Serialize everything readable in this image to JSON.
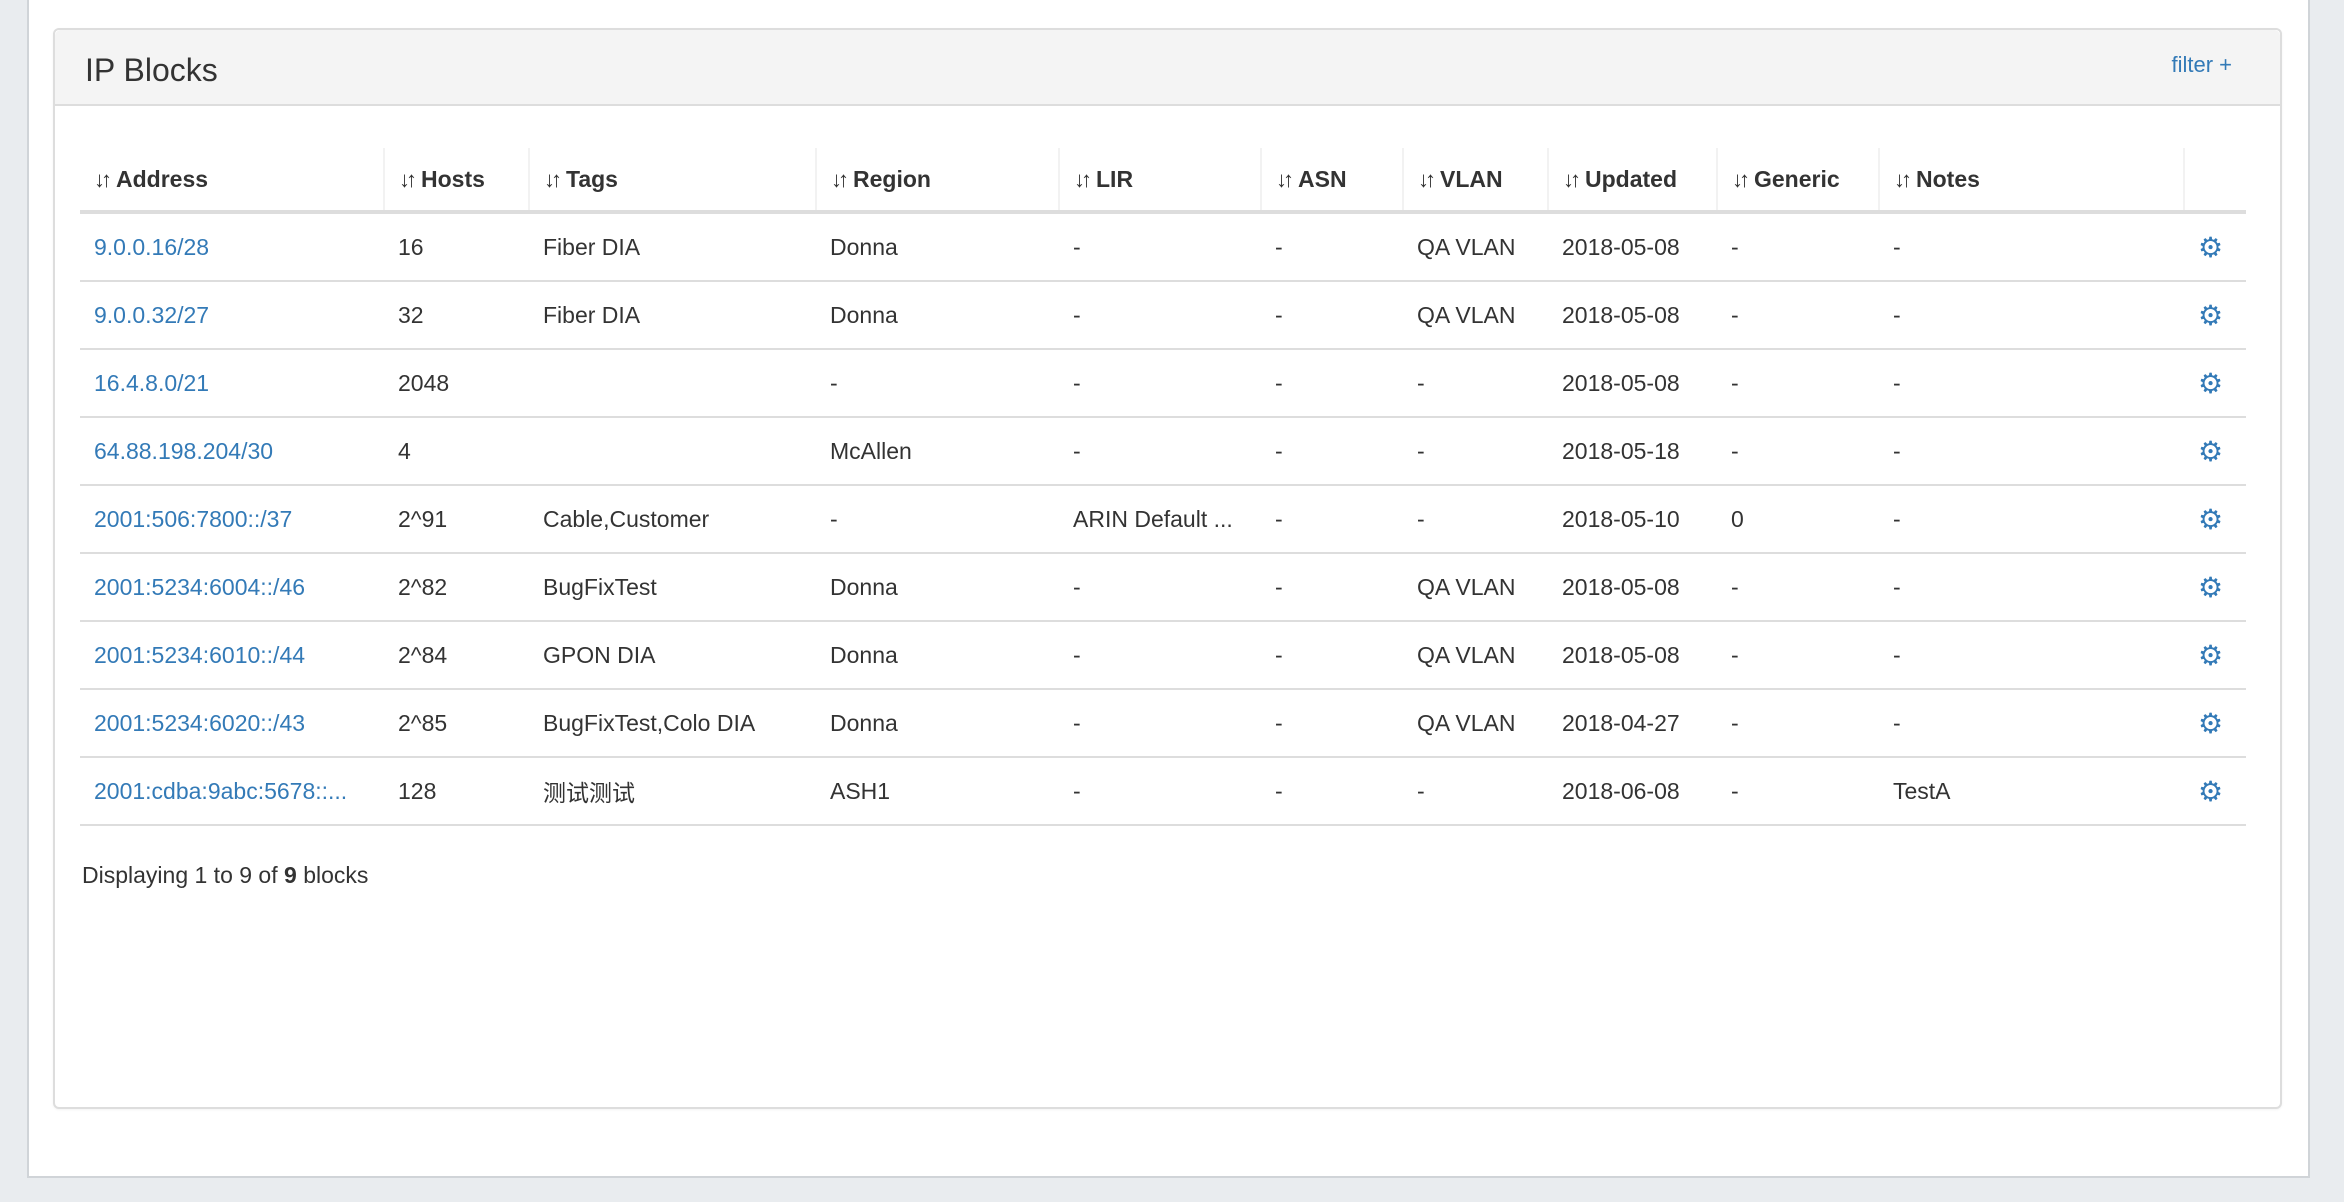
{
  "panel": {
    "title": "IP Blocks",
    "filter_label": "filter +"
  },
  "columns": [
    "Address",
    "Hosts",
    "Tags",
    "Region",
    "LIR",
    "ASN",
    "VLAN",
    "Updated",
    "Generic",
    "Notes"
  ],
  "rows": [
    [
      "9.0.0.16/28",
      "16",
      "Fiber DIA",
      "Donna",
      "-",
      "-",
      "QA VLAN",
      "2018-05-08",
      "-",
      "-"
    ],
    [
      "9.0.0.32/27",
      "32",
      "Fiber DIA",
      "Donna",
      "-",
      "-",
      "QA VLAN",
      "2018-05-08",
      "-",
      "-"
    ],
    [
      "16.4.8.0/21",
      "2048",
      "",
      "-",
      "-",
      "-",
      "-",
      "2018-05-08",
      "-",
      "-"
    ],
    [
      "64.88.198.204/30",
      "4",
      "",
      "McAllen",
      "-",
      "-",
      "-",
      "2018-05-18",
      "-",
      "-"
    ],
    [
      "2001:506:7800::/37",
      "2^91",
      "Cable,Customer",
      "-",
      "ARIN Default ...",
      "-",
      "-",
      "2018-05-10",
      "0",
      "-"
    ],
    [
      "2001:5234:6004::/46",
      "2^82",
      "BugFixTest",
      "Donna",
      "-",
      "-",
      "QA VLAN",
      "2018-05-08",
      "-",
      "-"
    ],
    [
      "2001:5234:6010::/44",
      "2^84",
      "GPON DIA",
      "Donna",
      "-",
      "-",
      "QA VLAN",
      "2018-05-08",
      "-",
      "-"
    ],
    [
      "2001:5234:6020::/43",
      "2^85",
      "BugFixTest,Colo DIA",
      "Donna",
      "-",
      "-",
      "QA VLAN",
      "2018-04-27",
      "-",
      "-"
    ],
    [
      "2001:cdba:9abc:5678::...",
      "128",
      "测试测试",
      "ASH1",
      "-",
      "-",
      "-",
      "2018-06-08",
      "-",
      "TestA"
    ]
  ],
  "footer": {
    "prefix": "Displaying 1 to 9 of ",
    "total": "9",
    "suffix": " blocks"
  },
  "icons": {
    "sort": "sort-icon",
    "row_action": "gear-icon"
  },
  "colors": {
    "link": "#337ab7",
    "header_bg": "#f4f4f4"
  }
}
